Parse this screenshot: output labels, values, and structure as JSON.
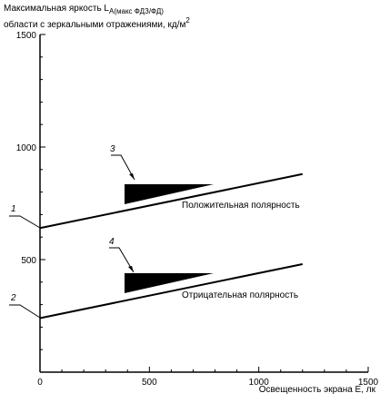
{
  "chart_data": {
    "type": "line",
    "ylabel": {
      "main": "Максимальная яркость L",
      "sub": "A(макс ФДЗ/ФД)",
      "line2": "области с зеркальными отражениями, кд/м",
      "sup": "2"
    },
    "xlabel": "Освещенность экрана E, лк",
    "x": [
      0,
      1200
    ],
    "series": [
      {
        "name": "Положительная полярность",
        "color": "#000000",
        "values": [
          640,
          880
        ]
      },
      {
        "name": "Отрицательная полярность",
        "color": "#000000",
        "values": [
          240,
          480
        ]
      }
    ],
    "markers": [
      "1",
      "2",
      "3",
      "4"
    ],
    "xlim": [
      0,
      1500
    ],
    "ylim": [
      0,
      1500
    ],
    "xticks": [
      0,
      500,
      1000,
      1500
    ],
    "yticks": [
      500,
      1000,
      1500
    ],
    "xminorticks": [
      100,
      200,
      300,
      400,
      600,
      700,
      800,
      900,
      1100,
      1200,
      1300,
      1400
    ],
    "yminorticks": [
      100,
      200,
      300,
      400,
      600,
      700,
      800,
      900,
      1100,
      1200,
      1300,
      1400
    ]
  }
}
